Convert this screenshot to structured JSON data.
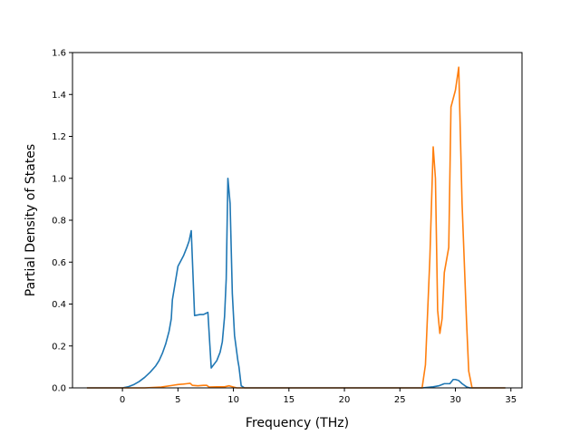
{
  "chart_data": {
    "type": "line",
    "title": "",
    "xlabel": "Frequency (THz)",
    "ylabel": "Partial Density of States",
    "xlim": [
      -4.5,
      36.0
    ],
    "ylim": [
      0.0,
      1.6
    ],
    "xticks": [
      0,
      5,
      10,
      15,
      20,
      25,
      30,
      35
    ],
    "yticks": [
      0.0,
      0.2,
      0.4,
      0.6,
      0.8,
      1.0,
      1.2,
      1.4,
      1.6
    ],
    "xtick_labels": [
      "0",
      "5",
      "10",
      "15",
      "20",
      "25",
      "30",
      "35"
    ],
    "ytick_labels": [
      "0.0",
      "0.2",
      "0.4",
      "0.6",
      "0.8",
      "1.0",
      "1.2",
      "1.4",
      "1.6"
    ],
    "grid": false,
    "legend": "none",
    "series": [
      {
        "color": "#1f77b4",
        "x": [
          -3.2,
          0.0,
          0.5,
          1.0,
          1.5,
          2.0,
          2.5,
          3.0,
          3.3,
          3.6,
          3.9,
          4.2,
          4.4,
          4.5,
          5.0,
          5.5,
          5.8,
          6.0,
          6.2,
          6.5,
          7.0,
          7.3,
          7.5,
          7.7,
          8.0,
          8.5,
          8.8,
          9.0,
          9.2,
          9.35,
          9.5,
          9.7,
          9.9,
          10.1,
          10.4,
          10.5,
          10.7,
          11.0,
          20.0,
          27.0,
          28.0,
          28.5,
          29.0,
          29.5,
          29.8,
          30.0,
          30.3,
          30.6,
          31.0,
          31.3,
          34.5
        ],
        "y": [
          0.0,
          0.0,
          0.005,
          0.015,
          0.03,
          0.05,
          0.075,
          0.105,
          0.13,
          0.165,
          0.21,
          0.27,
          0.33,
          0.42,
          0.58,
          0.63,
          0.67,
          0.7,
          0.75,
          0.345,
          0.35,
          0.35,
          0.355,
          0.36,
          0.095,
          0.13,
          0.17,
          0.22,
          0.34,
          0.52,
          1.0,
          0.88,
          0.45,
          0.25,
          0.13,
          0.1,
          0.01,
          0.0,
          0.0,
          0.0,
          0.005,
          0.01,
          0.02,
          0.02,
          0.04,
          0.04,
          0.035,
          0.02,
          0.005,
          0.0,
          0.0
        ]
      },
      {
        "color": "#ff7f0e",
        "x": [
          -3.2,
          2.0,
          3.5,
          4.5,
          5.0,
          5.5,
          5.8,
          6.1,
          6.3,
          6.8,
          7.3,
          7.6,
          7.8,
          8.5,
          9.2,
          9.6,
          10.0,
          10.3,
          11.0,
          20.0,
          27.0,
          27.3,
          27.7,
          28.0,
          28.2,
          28.4,
          28.6,
          28.8,
          29.0,
          29.4,
          29.6,
          30.0,
          30.3,
          30.6,
          31.0,
          31.2,
          31.5,
          34.5
        ],
        "y": [
          0.0,
          0.0,
          0.004,
          0.012,
          0.016,
          0.018,
          0.02,
          0.022,
          0.012,
          0.01,
          0.012,
          0.012,
          0.004,
          0.005,
          0.005,
          0.01,
          0.004,
          0.0,
          0.0,
          0.0,
          0.0,
          0.11,
          0.62,
          1.15,
          1.0,
          0.37,
          0.26,
          0.33,
          0.55,
          0.67,
          1.34,
          1.42,
          1.53,
          0.88,
          0.32,
          0.08,
          0.0,
          0.0
        ]
      }
    ]
  }
}
